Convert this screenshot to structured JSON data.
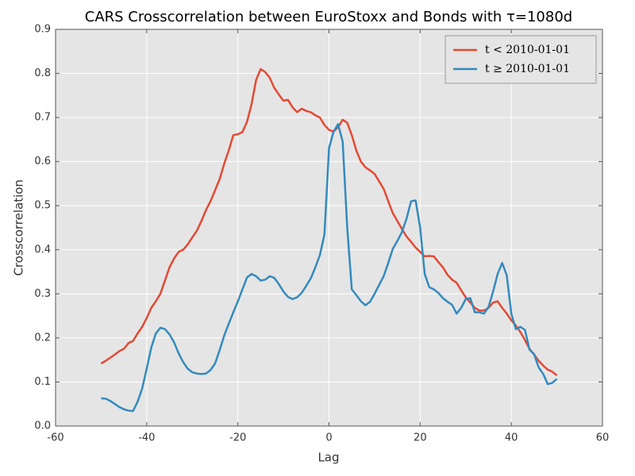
{
  "chart_data": {
    "type": "line",
    "title": "CARS Crosscorrelation between EuroStoxx and Bonds with τ=1080d",
    "xlabel": "Lag",
    "ylabel": "Crosscorrelation",
    "x": [
      -50,
      -49,
      -48,
      -47,
      -46,
      -45,
      -44,
      -43,
      -42,
      -41,
      -40,
      -39,
      -38,
      -37,
      -36,
      -35,
      -34,
      -33,
      -32,
      -31,
      -30,
      -29,
      -28,
      -27,
      -26,
      -25,
      -24,
      -23,
      -22,
      -21,
      -20,
      -19,
      -18,
      -17,
      -16,
      -15,
      -14,
      -13,
      -12,
      -11,
      -10,
      -9,
      -8,
      -7,
      -6,
      -5,
      -4,
      -3,
      -2,
      -1,
      0,
      1,
      2,
      3,
      4,
      5,
      6,
      7,
      8,
      9,
      10,
      11,
      12,
      13,
      14,
      15,
      16,
      17,
      18,
      19,
      20,
      21,
      22,
      23,
      24,
      25,
      26,
      27,
      28,
      29,
      30,
      31,
      32,
      33,
      34,
      35,
      36,
      37,
      38,
      39,
      40,
      41,
      42,
      43,
      44,
      45,
      46,
      47,
      48,
      49,
      50
    ],
    "series": [
      {
        "name": "t < 2010-01-01",
        "color": "#e24a33",
        "values": [
          0.142,
          0.148,
          0.155,
          0.162,
          0.17,
          0.175,
          0.188,
          0.193,
          0.21,
          0.225,
          0.245,
          0.268,
          0.283,
          0.3,
          0.33,
          0.36,
          0.38,
          0.395,
          0.4,
          0.412,
          0.428,
          0.443,
          0.465,
          0.49,
          0.51,
          0.535,
          0.56,
          0.595,
          0.625,
          0.66,
          0.662,
          0.667,
          0.69,
          0.73,
          0.785,
          0.81,
          0.803,
          0.79,
          0.767,
          0.752,
          0.738,
          0.74,
          0.723,
          0.712,
          0.72,
          0.715,
          0.712,
          0.705,
          0.7,
          0.683,
          0.672,
          0.668,
          0.678,
          0.695,
          0.688,
          0.66,
          0.625,
          0.6,
          0.587,
          0.58,
          0.572,
          0.555,
          0.538,
          0.51,
          0.483,
          0.465,
          0.447,
          0.43,
          0.418,
          0.405,
          0.395,
          0.385,
          0.386,
          0.385,
          0.372,
          0.36,
          0.343,
          0.332,
          0.325,
          0.308,
          0.292,
          0.28,
          0.268,
          0.262,
          0.262,
          0.268,
          0.28,
          0.283,
          0.268,
          0.255,
          0.24,
          0.228,
          0.213,
          0.195,
          0.175,
          0.162,
          0.148,
          0.137,
          0.128,
          0.123,
          0.115
        ]
      },
      {
        "name": "t ≥ 2010-01-01",
        "color": "#348abd",
        "values": [
          0.063,
          0.062,
          0.057,
          0.05,
          0.043,
          0.038,
          0.035,
          0.034,
          0.055,
          0.085,
          0.13,
          0.178,
          0.21,
          0.223,
          0.22,
          0.208,
          0.19,
          0.165,
          0.145,
          0.13,
          0.122,
          0.119,
          0.118,
          0.119,
          0.127,
          0.142,
          0.172,
          0.205,
          0.232,
          0.258,
          0.283,
          0.31,
          0.337,
          0.345,
          0.34,
          0.33,
          0.332,
          0.34,
          0.336,
          0.322,
          0.305,
          0.293,
          0.288,
          0.292,
          0.302,
          0.318,
          0.335,
          0.36,
          0.388,
          0.435,
          0.63,
          0.668,
          0.685,
          0.645,
          0.45,
          0.31,
          0.297,
          0.283,
          0.274,
          0.282,
          0.3,
          0.32,
          0.34,
          0.37,
          0.402,
          0.42,
          0.44,
          0.47,
          0.51,
          0.512,
          0.45,
          0.345,
          0.315,
          0.31,
          0.302,
          0.29,
          0.282,
          0.275,
          0.255,
          0.268,
          0.288,
          0.29,
          0.258,
          0.258,
          0.255,
          0.27,
          0.305,
          0.345,
          0.37,
          0.342,
          0.255,
          0.22,
          0.225,
          0.218,
          0.173,
          0.163,
          0.133,
          0.118,
          0.095,
          0.098,
          0.107
        ]
      }
    ],
    "xlim": [
      -60,
      60
    ],
    "xticks": [
      -60,
      -40,
      -20,
      0,
      20,
      40,
      60
    ],
    "ylim": [
      0,
      0.9
    ],
    "yticks": [
      {
        "value": 0,
        "label": "0.0"
      },
      0.1,
      0.2,
      0.3,
      0.4,
      0.5,
      0.6,
      0.7,
      0.8,
      0.9
    ],
    "grid": true,
    "legend": "upper right"
  }
}
